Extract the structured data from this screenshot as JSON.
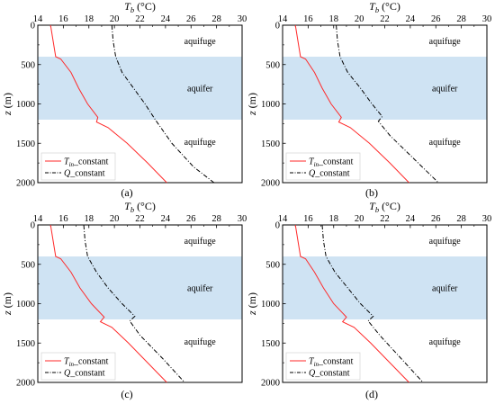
{
  "figure": {
    "panel_labels": [
      "(a)",
      "(b)",
      "(c)",
      "(d)"
    ]
  },
  "colors": {
    "aquifer_band": "#cfe3f3",
    "series_T": "#ff2a2a",
    "series_Q": "#000000"
  },
  "chart_data": [
    {
      "type": "line",
      "panel": "(a)",
      "title": "",
      "xlabel_main": "T",
      "xlabel_sub": "b",
      "xlabel_unit": " (°C)",
      "ylabel_main": "z",
      "ylabel_unit": " (m)",
      "xlim": [
        14,
        30
      ],
      "ylim": [
        0,
        2000
      ],
      "y_inverted": true,
      "x_axis_position": "top",
      "x_ticks": [
        "14",
        "16",
        "18",
        "20",
        "22",
        "24",
        "26",
        "28",
        "30"
      ],
      "y_ticks": [
        "0",
        "500",
        "1000",
        "1500",
        "2000"
      ],
      "zones": [
        {
          "label": "aquifuge",
          "from": 0,
          "to": 400,
          "shaded": false,
          "label_y": 200
        },
        {
          "label": "aquifer",
          "from": 400,
          "to": 1200,
          "shaded": true,
          "label_y": 800
        },
        {
          "label": "aquifuge",
          "from": 1200,
          "to": 2000,
          "shaded": false,
          "label_y": 1480
        }
      ],
      "legend": {
        "position": "bottom-left",
        "entries": [
          {
            "main": "T",
            "sub": "in",
            "suffix": "_constant",
            "style": "solid"
          },
          {
            "main": "Q",
            "sub": "",
            "suffix": "_constant",
            "style": "dashdot"
          }
        ]
      },
      "series": [
        {
          "name": "T_in_constant",
          "style": "solid",
          "points": [
            [
              15.0,
              0
            ],
            [
              15.1,
              100
            ],
            [
              15.2,
              200
            ],
            [
              15.3,
              300
            ],
            [
              15.4,
              400
            ],
            [
              15.8,
              430
            ],
            [
              16.6,
              600
            ],
            [
              17.2,
              800
            ],
            [
              17.9,
              1000
            ],
            [
              18.7,
              1170
            ],
            [
              18.6,
              1230
            ],
            [
              19.5,
              1300
            ],
            [
              21.0,
              1500
            ],
            [
              22.6,
              1750
            ],
            [
              24.1,
              2000
            ]
          ]
        },
        {
          "name": "Q_constant",
          "style": "dashdot",
          "points": [
            [
              19.8,
              0
            ],
            [
              19.9,
              200
            ],
            [
              20.1,
              400
            ],
            [
              20.6,
              600
            ],
            [
              21.5,
              800
            ],
            [
              22.4,
              1000
            ],
            [
              23.2,
              1200
            ],
            [
              24.5,
              1500
            ],
            [
              26.2,
              1800
            ],
            [
              27.8,
              2000
            ]
          ]
        }
      ]
    },
    {
      "type": "line",
      "panel": "(b)",
      "title": "",
      "xlabel_main": "T",
      "xlabel_sub": "b",
      "xlabel_unit": " (°C)",
      "ylabel_main": "z",
      "ylabel_unit": " (m)",
      "xlim": [
        14,
        30
      ],
      "ylim": [
        0,
        2000
      ],
      "y_inverted": true,
      "x_axis_position": "top",
      "x_ticks": [
        "14",
        "16",
        "18",
        "20",
        "22",
        "24",
        "26",
        "28",
        "30"
      ],
      "y_ticks": [
        "0",
        "500",
        "1000",
        "1500",
        "2000"
      ],
      "zones": [
        {
          "label": "aquifuge",
          "from": 0,
          "to": 400,
          "shaded": false,
          "label_y": 200
        },
        {
          "label": "aquifer",
          "from": 400,
          "to": 1200,
          "shaded": true,
          "label_y": 800
        },
        {
          "label": "aquifuge",
          "from": 1200,
          "to": 2000,
          "shaded": false,
          "label_y": 1480
        }
      ],
      "legend": {
        "position": "bottom-left",
        "entries": [
          {
            "main": "T",
            "sub": "in",
            "suffix": "_constant",
            "style": "solid"
          },
          {
            "main": "Q",
            "sub": "",
            "suffix": "_constant",
            "style": "dashdot"
          }
        ]
      },
      "series": [
        {
          "name": "T_in_constant",
          "style": "solid",
          "points": [
            [
              15.0,
              0
            ],
            [
              15.1,
              100
            ],
            [
              15.2,
              200
            ],
            [
              15.3,
              300
            ],
            [
              15.4,
              400
            ],
            [
              15.8,
              430
            ],
            [
              16.5,
              600
            ],
            [
              17.1,
              800
            ],
            [
              17.8,
              1000
            ],
            [
              18.6,
              1170
            ],
            [
              18.4,
              1230
            ],
            [
              19.3,
              1300
            ],
            [
              20.8,
              1500
            ],
            [
              22.4,
              1750
            ],
            [
              23.9,
              2000
            ]
          ]
        },
        {
          "name": "Q_constant",
          "style": "dashdot",
          "points": [
            [
              18.2,
              0
            ],
            [
              18.3,
              200
            ],
            [
              18.5,
              400
            ],
            [
              19.1,
              600
            ],
            [
              20.1,
              800
            ],
            [
              21.0,
              1000
            ],
            [
              21.8,
              1160
            ],
            [
              21.5,
              1220
            ],
            [
              22.4,
              1400
            ],
            [
              24.3,
              1700
            ],
            [
              26.2,
              2000
            ]
          ]
        }
      ]
    },
    {
      "type": "line",
      "panel": "(c)",
      "title": "",
      "xlabel_main": "T",
      "xlabel_sub": "b",
      "xlabel_unit": " (°C)",
      "ylabel_main": "z",
      "ylabel_unit": " (m)",
      "xlim": [
        14,
        30
      ],
      "ylim": [
        0,
        2000
      ],
      "y_inverted": true,
      "x_axis_position": "top",
      "x_ticks": [
        "14",
        "16",
        "18",
        "20",
        "22",
        "24",
        "26",
        "28",
        "30"
      ],
      "y_ticks": [
        "0",
        "500",
        "1000",
        "1500",
        "2000"
      ],
      "zones": [
        {
          "label": "aquifuge",
          "from": 0,
          "to": 400,
          "shaded": false,
          "label_y": 200
        },
        {
          "label": "aquifer",
          "from": 400,
          "to": 1200,
          "shaded": true,
          "label_y": 800
        },
        {
          "label": "aquifuge",
          "from": 1200,
          "to": 2000,
          "shaded": false,
          "label_y": 1480
        }
      ],
      "legend": {
        "position": "bottom-left",
        "entries": [
          {
            "main": "T",
            "sub": "in",
            "suffix": "_constant",
            "style": "solid"
          },
          {
            "main": "Q",
            "sub": "",
            "suffix": "_constant",
            "style": "dashdot"
          }
        ]
      },
      "series": [
        {
          "name": "T_in_constant",
          "style": "solid",
          "points": [
            [
              15.0,
              0
            ],
            [
              15.1,
              100
            ],
            [
              15.2,
              200
            ],
            [
              15.3,
              300
            ],
            [
              15.4,
              400
            ],
            [
              15.8,
              430
            ],
            [
              16.6,
              600
            ],
            [
              17.3,
              800
            ],
            [
              18.2,
              1000
            ],
            [
              19.2,
              1170
            ],
            [
              18.9,
              1230
            ],
            [
              19.8,
              1300
            ],
            [
              21.1,
              1500
            ],
            [
              22.6,
              1750
            ],
            [
              24.1,
              2000
            ]
          ]
        },
        {
          "name": "Q_constant",
          "style": "dashdot",
          "points": [
            [
              17.6,
              0
            ],
            [
              17.7,
              200
            ],
            [
              17.9,
              400
            ],
            [
              18.6,
              600
            ],
            [
              19.5,
              800
            ],
            [
              20.6,
              1000
            ],
            [
              21.6,
              1160
            ],
            [
              21.2,
              1220
            ],
            [
              22.0,
              1400
            ],
            [
              23.8,
              1700
            ],
            [
              25.5,
              2000
            ]
          ]
        }
      ]
    },
    {
      "type": "line",
      "panel": "(d)",
      "title": "",
      "xlabel_main": "T",
      "xlabel_sub": "b",
      "xlabel_unit": " (°C)",
      "ylabel_main": "z",
      "ylabel_unit": " (m)",
      "xlim": [
        14,
        30
      ],
      "ylim": [
        0,
        2000
      ],
      "y_inverted": true,
      "x_axis_position": "top",
      "x_ticks": [
        "14",
        "16",
        "18",
        "20",
        "22",
        "24",
        "26",
        "28",
        "30"
      ],
      "y_ticks": [
        "0",
        "500",
        "1000",
        "1500",
        "2000"
      ],
      "zones": [
        {
          "label": "aquifuge",
          "from": 0,
          "to": 400,
          "shaded": false,
          "label_y": 200
        },
        {
          "label": "aquifer",
          "from": 400,
          "to": 1200,
          "shaded": true,
          "label_y": 800
        },
        {
          "label": "aquifuge",
          "from": 1200,
          "to": 2000,
          "shaded": false,
          "label_y": 1480
        }
      ],
      "legend": {
        "position": "bottom-left",
        "entries": [
          {
            "main": "T",
            "sub": "in",
            "suffix": "_constant",
            "style": "solid"
          },
          {
            "main": "Q",
            "sub": "",
            "suffix": "_constant",
            "style": "dashdot"
          }
        ]
      },
      "series": [
        {
          "name": "T_in_constant",
          "style": "solid",
          "points": [
            [
              15.0,
              0
            ],
            [
              15.1,
              100
            ],
            [
              15.2,
              200
            ],
            [
              15.3,
              300
            ],
            [
              15.4,
              400
            ],
            [
              15.8,
              430
            ],
            [
              16.5,
              600
            ],
            [
              17.2,
              800
            ],
            [
              18.0,
              1000
            ],
            [
              19.0,
              1170
            ],
            [
              18.7,
              1230
            ],
            [
              19.6,
              1300
            ],
            [
              20.9,
              1500
            ],
            [
              22.4,
              1750
            ],
            [
              23.9,
              2000
            ]
          ]
        },
        {
          "name": "Q_constant",
          "style": "dashdot",
          "points": [
            [
              17.1,
              0
            ],
            [
              17.2,
              200
            ],
            [
              17.4,
              400
            ],
            [
              18.1,
              600
            ],
            [
              19.1,
              800
            ],
            [
              20.1,
              1000
            ],
            [
              21.1,
              1160
            ],
            [
              20.7,
              1220
            ],
            [
              21.6,
              1400
            ],
            [
              23.3,
              1700
            ],
            [
              25.0,
              2000
            ]
          ]
        }
      ]
    }
  ]
}
